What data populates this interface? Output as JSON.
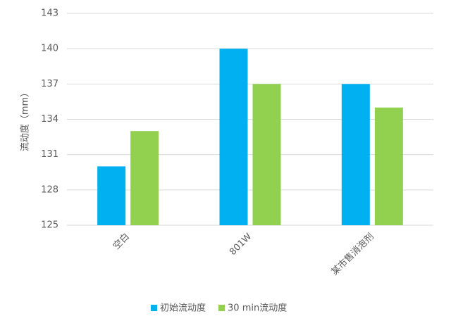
{
  "chart_data": {
    "type": "bar",
    "y_label": "流动度（mm）",
    "categories": [
      "空白",
      "801W",
      "某市售消泡剂"
    ],
    "series": [
      {
        "name": "初始流动度",
        "color": "#00b0f0",
        "values": [
          130,
          140,
          137
        ]
      },
      {
        "name": "30 min流动度",
        "color": "#92d050",
        "values": [
          133,
          137,
          135
        ]
      }
    ],
    "ylim": [
      125,
      143
    ],
    "yticks": [
      125,
      128,
      131,
      134,
      137,
      140,
      143
    ],
    "grid": true,
    "legend": "bottom"
  }
}
